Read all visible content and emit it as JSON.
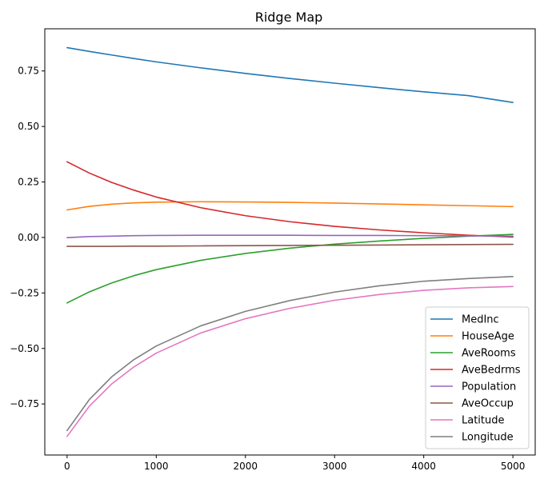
{
  "chart_data": {
    "type": "line",
    "title": "Ridge Map",
    "xlabel": "",
    "ylabel": "",
    "xlim": [
      -250,
      5250
    ],
    "ylim": [
      -0.98,
      0.94
    ],
    "x_ticks": [
      0,
      1000,
      2000,
      3000,
      4000,
      5000
    ],
    "x_tick_labels": [
      "0",
      "1000",
      "2000",
      "3000",
      "4000",
      "5000"
    ],
    "y_ticks": [
      0.75,
      0.5,
      0.25,
      0.0,
      -0.25,
      -0.5,
      -0.75
    ],
    "y_tick_labels": [
      "0.75",
      "0.50",
      "0.25",
      "0.00",
      "−0.25",
      "−0.50",
      "−0.75"
    ],
    "grid": false,
    "legend_position": "lower-right",
    "x": [
      0,
      250,
      500,
      750,
      1000,
      1500,
      2000,
      2500,
      3000,
      3500,
      4000,
      4500,
      5000
    ],
    "series": [
      {
        "name": "MedInc",
        "color": "#1f77b4",
        "values": [
          0.855,
          0.838,
          0.822,
          0.806,
          0.791,
          0.764,
          0.739,
          0.716,
          0.695,
          0.675,
          0.656,
          0.639,
          0.608
        ]
      },
      {
        "name": "HouseAge",
        "color": "#ff7f0e",
        "values": [
          0.124,
          0.14,
          0.15,
          0.156,
          0.159,
          0.161,
          0.16,
          0.158,
          0.155,
          0.151,
          0.147,
          0.143,
          0.139
        ]
      },
      {
        "name": "AveRooms",
        "color": "#2ca02c",
        "values": [
          -0.295,
          -0.245,
          -0.205,
          -0.172,
          -0.145,
          -0.103,
          -0.072,
          -0.048,
          -0.03,
          -0.016,
          -0.004,
          0.006,
          0.014
        ]
      },
      {
        "name": "AveBedrms",
        "color": "#d62728",
        "values": [
          0.341,
          0.29,
          0.248,
          0.213,
          0.182,
          0.134,
          0.098,
          0.071,
          0.05,
          0.034,
          0.021,
          0.01,
          0.002
        ]
      },
      {
        "name": "Population",
        "color": "#9467bd",
        "values": [
          -0.001,
          0.004,
          0.006,
          0.008,
          0.009,
          0.01,
          0.01,
          0.01,
          0.009,
          0.009,
          0.008,
          0.007,
          0.006
        ]
      },
      {
        "name": "AveOccup",
        "color": "#8c564b",
        "values": [
          -0.04,
          -0.04,
          -0.04,
          -0.039,
          -0.039,
          -0.038,
          -0.037,
          -0.036,
          -0.035,
          -0.034,
          -0.033,
          -0.032,
          -0.031
        ]
      },
      {
        "name": "Latitude",
        "color": "#e377c2",
        "values": [
          -0.896,
          -0.76,
          -0.66,
          -0.583,
          -0.521,
          -0.43,
          -0.366,
          -0.319,
          -0.283,
          -0.257,
          -0.238,
          -0.227,
          -0.221
        ]
      },
      {
        "name": "Longitude",
        "color": "#7f7f7f",
        "values": [
          -0.87,
          -0.73,
          -0.628,
          -0.55,
          -0.489,
          -0.398,
          -0.333,
          -0.284,
          -0.246,
          -0.218,
          -0.197,
          -0.185,
          -0.176
        ]
      }
    ]
  }
}
